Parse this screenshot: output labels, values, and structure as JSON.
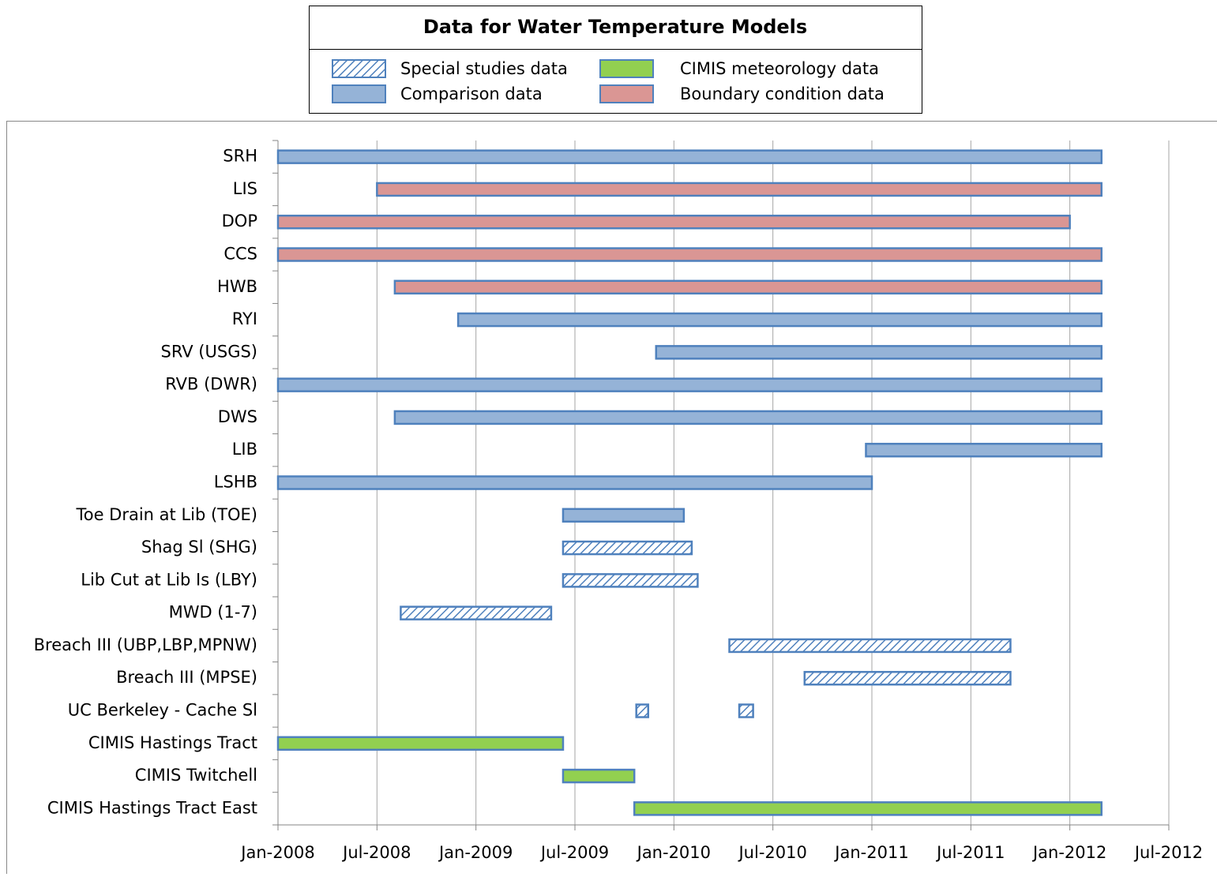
{
  "chart_data": {
    "type": "gantt",
    "title": "Data for Water Temperature Models",
    "categories": [
      "SRH",
      "LIS",
      "DOP",
      "CCS",
      "HWB",
      "RYI",
      "SRV (USGS)",
      "RVB (DWR)",
      "DWS",
      "LIB",
      "LSHB",
      "Toe Drain at Lib (TOE)",
      "Shag Sl (SHG)",
      "Lib Cut at Lib Is (LBY)",
      "MWD (1-7)",
      "Breach III (UBP,LBP,MPNW)",
      "Breach III (MPSE)",
      "UC Berkeley - Cache Sl",
      "CIMIS Hastings Tract",
      "CIMIS Twitchell",
      "CIMIS Hastings Tract East"
    ],
    "series": [
      {
        "name": "Special studies data",
        "color": "#4f81bd",
        "pattern": "hatch",
        "values": [
          null,
          null,
          null,
          null,
          null,
          null,
          null,
          null,
          null,
          null,
          null,
          null,
          [
            [
              2009.44,
              2010.09
            ]
          ],
          [
            [
              2009.44,
              2010.12
            ]
          ],
          [
            [
              2008.62,
              2009.38
            ]
          ],
          [
            [
              2010.28,
              2011.7
            ]
          ],
          [
            [
              2010.66,
              2011.7
            ]
          ],
          [
            [
              2009.81,
              2009.87
            ],
            [
              2010.33,
              2010.4
            ]
          ],
          null,
          null,
          null
        ]
      },
      {
        "name": "CIMIS meteorology data",
        "color": "#92d050",
        "pattern": "solid",
        "values": [
          null,
          null,
          null,
          null,
          null,
          null,
          null,
          null,
          null,
          null,
          null,
          null,
          null,
          null,
          null,
          null,
          null,
          null,
          [
            [
              2008.0,
              2009.44
            ]
          ],
          [
            [
              2009.44,
              2009.8
            ]
          ],
          [
            [
              2009.8,
              2012.16
            ]
          ]
        ]
      },
      {
        "name": "Comparison data",
        "color": "#95b3d7",
        "pattern": "solid",
        "values": [
          [
            [
              2008.0,
              2012.16
            ]
          ],
          null,
          null,
          null,
          null,
          [
            [
              2008.91,
              2012.16
            ]
          ],
          [
            [
              2009.91,
              2012.16
            ]
          ],
          [
            [
              2008.0,
              2012.16
            ]
          ],
          [
            [
              2008.59,
              2012.16
            ]
          ],
          [
            [
              2010.97,
              2012.16
            ]
          ],
          [
            [
              2008.0,
              2011.0
            ]
          ],
          [
            [
              2009.44,
              2010.05
            ]
          ],
          null,
          null,
          null,
          null,
          null,
          null,
          null,
          null,
          null
        ]
      },
      {
        "name": "Boundary condition data",
        "color": "#da9694",
        "pattern": "solid",
        "values": [
          null,
          [
            [
              2008.5,
              2012.16
            ]
          ],
          [
            [
              2008.0,
              2012.0
            ]
          ],
          [
            [
              2008.0,
              2012.16
            ]
          ],
          [
            [
              2008.59,
              2012.16
            ]
          ],
          null,
          null,
          null,
          null,
          null,
          null,
          null,
          null,
          null,
          null,
          null,
          null,
          null,
          null,
          null,
          null
        ]
      }
    ],
    "xlim": [
      2008.0,
      2012.5
    ],
    "xticks": [
      {
        "value": 2008.0,
        "label": "Jan-2008"
      },
      {
        "value": 2008.5,
        "label": "Jul-2008"
      },
      {
        "value": 2009.0,
        "label": "Jan-2009"
      },
      {
        "value": 2009.5,
        "label": "Jul-2009"
      },
      {
        "value": 2010.0,
        "label": "Jan-2010"
      },
      {
        "value": 2010.5,
        "label": "Jul-2010"
      },
      {
        "value": 2011.0,
        "label": "Jan-2011"
      },
      {
        "value": 2011.5,
        "label": "Jul-2011"
      },
      {
        "value": 2012.0,
        "label": "Jan-2012"
      },
      {
        "value": 2012.5,
        "label": "Jul-2012"
      }
    ],
    "grid": true
  }
}
